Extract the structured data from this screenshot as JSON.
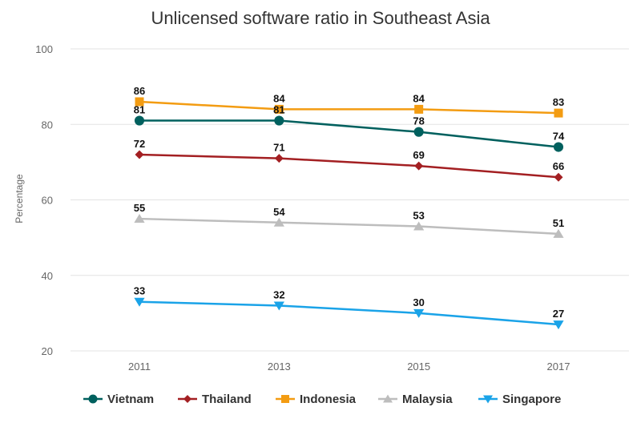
{
  "chart_data": {
    "type": "line",
    "title": "Unlicensed software ratio in Southeast Asia",
    "ylabel": "Percentage",
    "xlabel": "",
    "categories": [
      "2011",
      "2013",
      "2015",
      "2017"
    ],
    "ylim": [
      20,
      100
    ],
    "yticks": [
      20,
      40,
      60,
      80,
      100
    ],
    "grid": true,
    "legend_position": "bottom",
    "series": [
      {
        "name": "Vietnam",
        "values": [
          81,
          81,
          78,
          74
        ],
        "color": "#00605E",
        "marker": "circle"
      },
      {
        "name": "Thailand",
        "values": [
          72,
          71,
          69,
          66
        ],
        "color": "#A31F22",
        "marker": "diamond"
      },
      {
        "name": "Indonesia",
        "values": [
          86,
          84,
          84,
          83
        ],
        "color": "#F39C12",
        "marker": "square"
      },
      {
        "name": "Malaysia",
        "values": [
          55,
          54,
          53,
          51
        ],
        "color": "#BDBDBD",
        "marker": "triangle-up"
      },
      {
        "name": "Singapore",
        "values": [
          33,
          32,
          30,
          27
        ],
        "color": "#1AA3E8",
        "marker": "triangle-down"
      }
    ]
  }
}
